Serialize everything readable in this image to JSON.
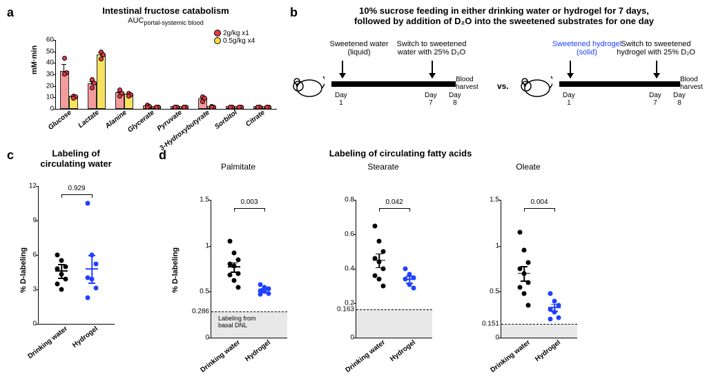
{
  "colors": {
    "red": "#e63946",
    "red_fill": "#f28b8b",
    "yellow": "#f5dd42",
    "black": "#000000",
    "blue": "#2040ff",
    "grey_band": "#e8e8e8"
  },
  "panelA": {
    "label": "a",
    "title": "Intestinal fructose catabolism",
    "subtitle_prefix": "AUC",
    "subtitle_sub": "portal-systemic blood",
    "ylabel": "mM·min",
    "ylim": [
      0,
      60
    ],
    "ytick_step": 10,
    "legend": [
      {
        "label": "2g/kg x1",
        "color": "#e63946"
      },
      {
        "label": "0.5g/kg x4",
        "color": "#f5dd42"
      }
    ],
    "categories": [
      "Glucose",
      "Lactate",
      "Alanine",
      "Glycerate",
      "Pyruvate",
      "3-Hydroxybutyrate",
      "Sorbitol",
      "Citrate"
    ],
    "series": [
      {
        "name": "2g/kg x1",
        "color": "#f28b8b",
        "dot": "#e63946",
        "values": [
          32,
          21,
          13,
          2,
          1,
          8,
          1,
          1
        ],
        "points": [
          [
            44,
            31,
            30
          ],
          [
            25,
            22,
            18
          ],
          [
            16,
            13,
            11
          ],
          [
            3,
            2,
            1
          ],
          [
            1,
            1,
            1
          ],
          [
            10,
            9,
            6
          ],
          [
            1,
            1,
            1
          ],
          [
            1,
            1,
            1
          ]
        ],
        "err": [
          7,
          3,
          2,
          1,
          0.5,
          2,
          0.5,
          0.5
        ]
      },
      {
        "name": "0.5g/kg x4",
        "color": "#f5dd42",
        "dot": "#e63946",
        "values": [
          10,
          46,
          12,
          1,
          1,
          1,
          1,
          1
        ],
        "points": [
          [
            11,
            10,
            9
          ],
          [
            49,
            47,
            43
          ],
          [
            13,
            12,
            11
          ],
          [
            1,
            1,
            1
          ],
          [
            1,
            1,
            1
          ],
          [
            2,
            1,
            1
          ],
          [
            1,
            1,
            1
          ],
          [
            1,
            1,
            1
          ]
        ],
        "err": [
          1,
          3,
          1,
          0.5,
          0.5,
          0.5,
          0.5,
          0.5
        ]
      }
    ]
  },
  "panelB": {
    "label": "b",
    "title_line1": "10% sucrose feeding in either drinking water or hydrogel for 7 days,",
    "title_line2": "followed by addition of D₂O into the sweetened substrates  for one day",
    "left": {
      "label1": "Sweetened water",
      "label1b": "(liquid)",
      "label2": "Switch to sweetened",
      "label2b": "water with 25% D₂O",
      "harvest": "Blood\nharvest",
      "days": [
        "Day\n1",
        "Day\n7",
        "Day\n8"
      ]
    },
    "vs": "vs.",
    "right": {
      "label1": "Sweetened hydrogel",
      "label1b": "(solid)",
      "label1_color": "#2040ff",
      "label2": "Switch to sweetened",
      "label2b": "hydrogel with 25% D₂O",
      "harvest": "Blood\nharvest",
      "days": [
        "Day\n1",
        "Day\n7",
        "Day\n8"
      ]
    }
  },
  "panelC": {
    "label": "c",
    "title": "Labeling of",
    "title2": "circulating water",
    "ylabel": "% D-labeling",
    "ylim": [
      0,
      12
    ],
    "yticks": [
      0,
      3,
      6,
      9,
      12
    ],
    "groups": [
      "Drinking water",
      "Hydrogel"
    ],
    "colors": [
      "#000000",
      "#2040ff"
    ],
    "p": "0.929",
    "data": [
      {
        "mean": 4.6,
        "sem": 0.6,
        "points": [
          6.0,
          5.5,
          5.0,
          4.8,
          4.3,
          3.9,
          3.5,
          3.0
        ]
      },
      {
        "mean": 4.8,
        "sem": 1.2,
        "points": [
          10.5,
          6.0,
          5.2,
          4.0,
          3.9,
          3.1,
          2.3
        ]
      }
    ]
  },
  "panelD": {
    "label": "d",
    "main_title": "Labeling of circulating fatty acids",
    "ylabel": "% D-labeling",
    "groups": [
      "Drinking water",
      "Hydrogel"
    ],
    "colors": [
      "#000000",
      "#2040ff"
    ],
    "baseline_label": "Labeling from\nbasal DNL",
    "charts": [
      {
        "title": "Palmitate",
        "ylim": [
          0,
          1.5
        ],
        "yticks": [
          0,
          0.5,
          1.0,
          1.5
        ],
        "baseline": 0.286,
        "p": "0.003",
        "data": [
          {
            "mean": 0.77,
            "sem": 0.05,
            "points": [
              1.05,
              0.92,
              0.85,
              0.8,
              0.78,
              0.7,
              0.68,
              0.62,
              0.55
            ]
          },
          {
            "mean": 0.52,
            "sem": 0.02,
            "points": [
              0.58,
              0.55,
              0.53,
              0.51,
              0.5,
              0.48,
              0.47
            ]
          }
        ]
      },
      {
        "title": "Stearate",
        "ylim": [
          0,
          0.8
        ],
        "yticks": [
          0,
          0.2,
          0.4,
          0.6,
          0.8
        ],
        "baseline": 0.163,
        "p": "0.042",
        "data": [
          {
            "mean": 0.45,
            "sem": 0.04,
            "points": [
              0.65,
              0.56,
              0.5,
              0.46,
              0.44,
              0.4,
              0.36,
              0.34,
              0.3
            ]
          },
          {
            "mean": 0.34,
            "sem": 0.02,
            "points": [
              0.4,
              0.37,
              0.35,
              0.34,
              0.31,
              0.29
            ]
          }
        ]
      },
      {
        "title": "Oleate",
        "ylim": [
          0,
          1.5
        ],
        "yticks": [
          0,
          0.5,
          1.0,
          1.5
        ],
        "baseline": 0.151,
        "p": "0.004",
        "data": [
          {
            "mean": 0.7,
            "sem": 0.08,
            "points": [
              1.15,
              0.95,
              0.82,
              0.75,
              0.7,
              0.6,
              0.55,
              0.48,
              0.35
            ]
          },
          {
            "mean": 0.33,
            "sem": 0.04,
            "points": [
              0.48,
              0.4,
              0.35,
              0.31,
              0.28,
              0.22,
              0.2
            ]
          }
        ]
      }
    ]
  }
}
